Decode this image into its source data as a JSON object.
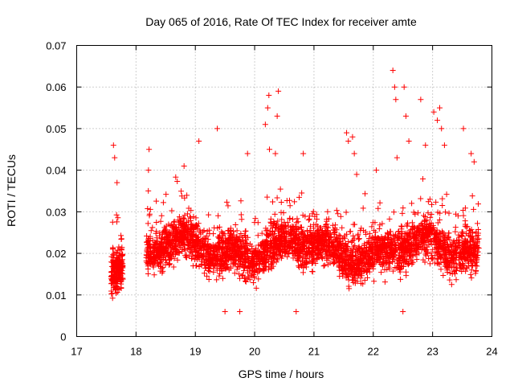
{
  "chart_data": {
    "type": "scatter",
    "title": "Day 065 of 2016, Rate Of TEC Index for receiver amte",
    "xlabel": "GPS time / hours",
    "ylabel": "ROTI / TECUs",
    "xlim": [
      17,
      24
    ],
    "ylim": [
      0,
      0.07
    ],
    "xticks": [
      "17",
      "18",
      "19",
      "20",
      "21",
      "22",
      "23",
      "24"
    ],
    "yticks": [
      "0",
      "0.01",
      "0.02",
      "0.03",
      "0.04",
      "0.05",
      "0.06",
      "0.07"
    ],
    "grid": true,
    "marker": "+",
    "color": "#ff0000",
    "series": [
      {
        "name": "ROTI",
        "segments": [
          {
            "start": 17.58,
            "end": 17.78,
            "count": 220,
            "min": 0.009,
            "max": 0.047,
            "base": 0.019
          },
          {
            "start": 18.17,
            "end": 23.78,
            "count": 3600,
            "min": 0.005,
            "max": 0.064,
            "base": 0.021
          }
        ],
        "points": [
          {
            "x": 17.62,
            "y": 0.046
          },
          {
            "x": 17.64,
            "y": 0.043
          },
          {
            "x": 17.68,
            "y": 0.037
          },
          {
            "x": 18.22,
            "y": 0.045
          },
          {
            "x": 18.21,
            "y": 0.04
          },
          {
            "x": 18.81,
            "y": 0.041
          },
          {
            "x": 19.06,
            "y": 0.047
          },
          {
            "x": 19.37,
            "y": 0.05
          },
          {
            "x": 19.88,
            "y": 0.044
          },
          {
            "x": 20.18,
            "y": 0.051
          },
          {
            "x": 20.22,
            "y": 0.055
          },
          {
            "x": 20.24,
            "y": 0.058
          },
          {
            "x": 20.25,
            "y": 0.045
          },
          {
            "x": 20.35,
            "y": 0.044
          },
          {
            "x": 20.38,
            "y": 0.053
          },
          {
            "x": 20.4,
            "y": 0.059
          },
          {
            "x": 20.82,
            "y": 0.044
          },
          {
            "x": 21.55,
            "y": 0.049
          },
          {
            "x": 21.58,
            "y": 0.047
          },
          {
            "x": 21.65,
            "y": 0.048
          },
          {
            "x": 21.68,
            "y": 0.044
          },
          {
            "x": 21.72,
            "y": 0.039
          },
          {
            "x": 22.05,
            "y": 0.04
          },
          {
            "x": 22.33,
            "y": 0.064
          },
          {
            "x": 22.36,
            "y": 0.06
          },
          {
            "x": 22.38,
            "y": 0.057
          },
          {
            "x": 22.4,
            "y": 0.043
          },
          {
            "x": 22.52,
            "y": 0.06
          },
          {
            "x": 22.55,
            "y": 0.053
          },
          {
            "x": 22.6,
            "y": 0.047
          },
          {
            "x": 22.8,
            "y": 0.057
          },
          {
            "x": 22.88,
            "y": 0.046
          },
          {
            "x": 23.02,
            "y": 0.054
          },
          {
            "x": 23.08,
            "y": 0.052
          },
          {
            "x": 23.12,
            "y": 0.055
          },
          {
            "x": 23.15,
            "y": 0.05
          },
          {
            "x": 23.2,
            "y": 0.046
          },
          {
            "x": 23.52,
            "y": 0.05
          },
          {
            "x": 23.65,
            "y": 0.044
          },
          {
            "x": 23.7,
            "y": 0.042
          },
          {
            "x": 22.5,
            "y": 0.006
          },
          {
            "x": 20.7,
            "y": 0.006
          },
          {
            "x": 19.5,
            "y": 0.006
          },
          {
            "x": 19.75,
            "y": 0.006
          }
        ]
      }
    ]
  }
}
